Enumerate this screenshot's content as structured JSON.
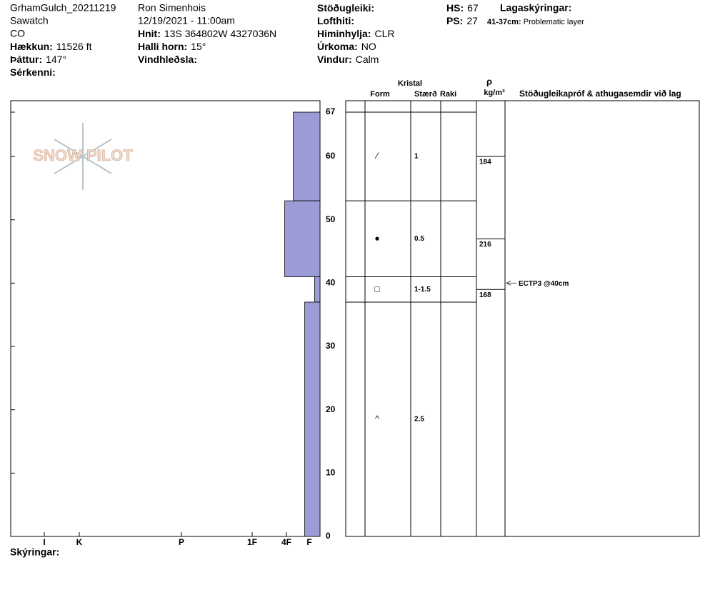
{
  "header": {
    "col1": [
      "GrhamGulch_20211219",
      "Sawatch",
      "CO",
      {
        "label": "Hækkun:",
        "value": "11526 ft"
      },
      {
        "label": "Þáttur:",
        "value": "147°"
      },
      {
        "label": "Sérkenni:"
      }
    ],
    "col2": [
      "Ron Simenhois",
      "12/19/2021 - 11:00am",
      {
        "label": "Hnit:",
        "value": "13S 364802W 4327036N"
      },
      {
        "label": "Halli horn:",
        "value": "15°"
      },
      {
        "label": "Vindhleðsla:"
      }
    ],
    "col3": [
      {
        "label": "Stöðugleiki:"
      },
      {
        "label": "Lofthiti:"
      },
      {
        "label": "Himinhylja:",
        "value": "CLR"
      },
      {
        "label": "Úrkoma:",
        "value": "NO"
      },
      {
        "label": "Vindur:",
        "value": "Calm"
      }
    ],
    "col4": [
      {
        "label": "HS:",
        "value": "67"
      },
      {
        "label": "PS:",
        "value": "27"
      }
    ],
    "notes_title": "Lagaskýringar:",
    "notes": [
      {
        "label": "41-37cm:",
        "value": "Problematic layer"
      }
    ]
  },
  "logo": "SNOW PILOT",
  "profile": {
    "depth_lim": [
      0,
      67
    ],
    "depth_ticks": [
      0,
      10,
      20,
      30,
      40,
      50,
      60,
      67
    ],
    "hardness_ticks": [
      {
        "value": 1,
        "label": "F"
      },
      {
        "value": 2,
        "label": "4F"
      },
      {
        "value": 3,
        "label": "1F"
      },
      {
        "value": 4,
        "label": "P"
      },
      {
        "value": 5,
        "label": "K"
      },
      {
        "value": 6,
        "label": "I"
      }
    ],
    "bar_color": "#9b9bd6",
    "layers": [
      {
        "top": 67,
        "bottom": 53,
        "hardness": 1.7,
        "form": "⁄",
        "size": "1"
      },
      {
        "top": 53,
        "bottom": 41,
        "hardness": 2.05,
        "form": "●",
        "size": "0.5"
      },
      {
        "top": 41,
        "bottom": 37,
        "hardness": 0.5,
        "form": "□",
        "size": "1-1.5"
      },
      {
        "top": 37,
        "bottom": 0,
        "hardness": 1.2,
        "form": "^",
        "size": "2.5"
      }
    ],
    "density": [
      {
        "depth": 60,
        "value": 184
      },
      {
        "depth": 47,
        "value": 216
      },
      {
        "depth": 39,
        "value": 168
      }
    ],
    "tests": [
      {
        "depth": 40,
        "label": "ECTP3 @40cm"
      }
    ]
  },
  "table_headers": {
    "crystal": "Kristal",
    "form": "Form",
    "size": "Stærð",
    "moisture": "Raki",
    "rho": "ρ",
    "density_unit": "kg/m³",
    "tests": "Stöðugleikapróf & athugasemdir við lag"
  },
  "footer": "Skýringar:"
}
